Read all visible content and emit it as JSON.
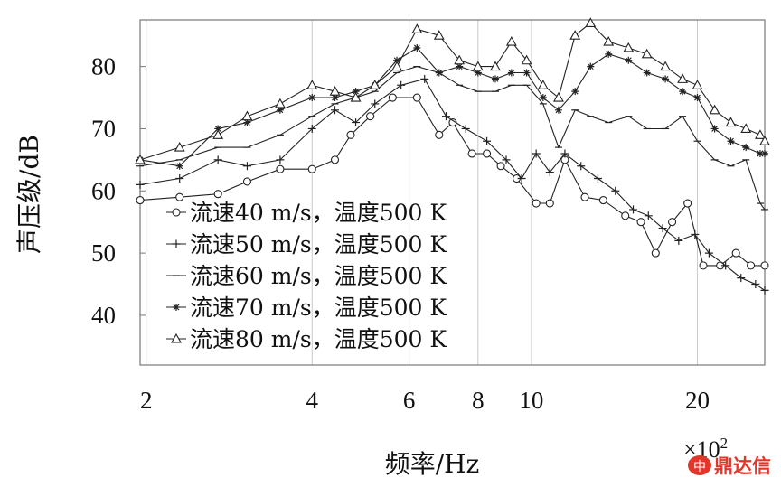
{
  "chart_data": {
    "type": "line",
    "xscale": "log",
    "xlim": [
      195,
      2650
    ],
    "ylim": [
      32,
      87.5
    ],
    "x_ticks": [
      {
        "value": 200,
        "label": "2"
      },
      {
        "value": 400,
        "label": "4"
      },
      {
        "value": 600,
        "label": "6"
      },
      {
        "value": 800,
        "label": "8"
      },
      {
        "value": 1000,
        "label": "10"
      },
      {
        "value": 2000,
        "label": "20"
      }
    ],
    "x_multiplier": "×10",
    "x_multiplier_exp": "2",
    "y_ticks": [
      {
        "value": 40,
        "label": "40"
      },
      {
        "value": 50,
        "label": "50"
      },
      {
        "value": 60,
        "label": "60"
      },
      {
        "value": 70,
        "label": "70"
      },
      {
        "value": 80,
        "label": "80"
      }
    ],
    "xlabel": "频率/Hz",
    "ylabel": "声压级/dB",
    "grid": "vertical at major x ticks",
    "legend_position": "bottom-left",
    "series": [
      {
        "name": "流速40 m/s，温度500 K",
        "marker": "circle",
        "x": [
          195,
          230,
          270,
          305,
          350,
          400,
          440,
          470,
          510,
          560,
          620,
          680,
          720,
          780,
          830,
          880,
          940,
          1020,
          1080,
          1150,
          1250,
          1350,
          1480,
          1580,
          1680,
          1800,
          1920,
          2050,
          2200,
          2350,
          2500,
          2650
        ],
        "y": [
          58.5,
          59,
          59.5,
          61.5,
          63.5,
          63.5,
          65,
          69,
          72,
          75,
          75,
          69,
          71,
          66,
          66,
          64,
          62,
          58,
          58,
          65,
          59,
          58.5,
          56,
          55,
          50,
          55,
          58,
          48,
          48,
          50,
          48,
          48
        ]
      },
      {
        "name": "流速50 m/s，温度500 K",
        "marker": "plus",
        "x": [
          195,
          230,
          270,
          305,
          350,
          400,
          440,
          480,
          520,
          580,
          640,
          700,
          760,
          830,
          900,
          960,
          1020,
          1080,
          1150,
          1230,
          1320,
          1420,
          1530,
          1630,
          1730,
          1850,
          1980,
          2100,
          2250,
          2400,
          2550,
          2650
        ],
        "y": [
          61,
          62,
          65,
          64,
          65,
          70,
          73,
          71,
          74,
          77,
          78,
          72,
          70,
          68,
          65,
          62,
          66,
          63,
          66,
          64,
          62,
          60,
          57,
          56,
          54,
          52,
          53,
          50,
          48,
          46,
          45,
          44
        ]
      },
      {
        "name": "流速60 m/s，温度500 K",
        "marker": "dash",
        "x": [
          195,
          230,
          270,
          305,
          350,
          400,
          440,
          480,
          520,
          570,
          620,
          680,
          740,
          800,
          860,
          920,
          980,
          1050,
          1120,
          1200,
          1280,
          1380,
          1500,
          1620,
          1750,
          1880,
          2000,
          2150,
          2300,
          2450,
          2600,
          2650
        ],
        "y": [
          64,
          65,
          67,
          67,
          69,
          72,
          74,
          75,
          76,
          79,
          80,
          79,
          77,
          76,
          76,
          77,
          77,
          74,
          67,
          73,
          72,
          71,
          72,
          70,
          70,
          72,
          68,
          65,
          64,
          65,
          58,
          57
        ]
      },
      {
        "name": "流速70 m/s，温度500 K",
        "marker": "star",
        "x": [
          195,
          230,
          270,
          305,
          350,
          400,
          440,
          480,
          520,
          570,
          620,
          680,
          740,
          800,
          860,
          920,
          980,
          1050,
          1120,
          1200,
          1280,
          1380,
          1500,
          1620,
          1750,
          1880,
          2000,
          2150,
          2300,
          2450,
          2600,
          2650
        ],
        "y": [
          65,
          64,
          70,
          71,
          73,
          75,
          75,
          76,
          77,
          81,
          83,
          79,
          80,
          79,
          78,
          79,
          79,
          75,
          73,
          76,
          80,
          82,
          81,
          79,
          78,
          76,
          75,
          70,
          68,
          67,
          66,
          66
        ]
      },
      {
        "name": "流速80 m/s，温度500 K",
        "marker": "triangle",
        "x": [
          195,
          230,
          270,
          305,
          350,
          400,
          440,
          480,
          520,
          570,
          620,
          680,
          740,
          800,
          860,
          920,
          980,
          1050,
          1120,
          1200,
          1280,
          1380,
          1500,
          1620,
          1750,
          1880,
          2000,
          2150,
          2300,
          2450,
          2600,
          2650
        ],
        "y": [
          65,
          67,
          69,
          72,
          74,
          77,
          76,
          75,
          77,
          80,
          86,
          85,
          81,
          80,
          80,
          84,
          81,
          77,
          75,
          85,
          87,
          84,
          83,
          82,
          80,
          78,
          77,
          73,
          71,
          70,
          69,
          68
        ]
      }
    ]
  },
  "watermark": {
    "logo_text": "中",
    "brand": "鼎达信"
  }
}
